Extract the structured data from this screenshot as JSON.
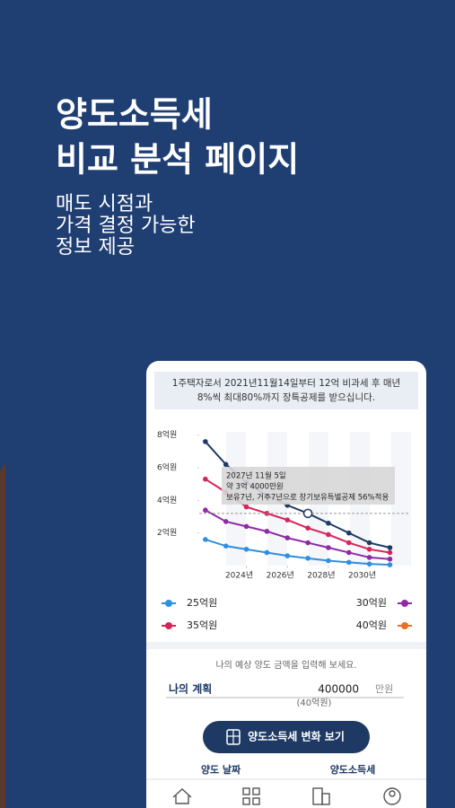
{
  "headline": [
    "양도소득세",
    "비교 분석 페이지"
  ],
  "subtext": [
    "매도 시점과",
    "가격 결정 가능한",
    "정보 제공"
  ],
  "notice": [
    "1주택자로서 2021년11월14일부터 12억 비과세 후 매년",
    "8%씩 최대80%까지 장특공제를 받으십니다."
  ],
  "chart_data": {
    "type": "line",
    "x": [
      2022,
      2023,
      2024,
      2025,
      2026,
      2027,
      2028,
      2029,
      2030,
      2031
    ],
    "series": [
      {
        "name": "25억원",
        "color": "#2f8fe0",
        "marker_color": "#2f8fe0",
        "values": [
          1.6,
          1.2,
          1.0,
          0.8,
          0.6,
          0.45,
          0.3,
          0.2,
          0.1,
          0.05
        ]
      },
      {
        "name": "30억원",
        "color": "#8e2aa5",
        "marker_color": "#8e2aa5",
        "values": [
          3.4,
          2.7,
          2.4,
          2.1,
          1.7,
          1.4,
          1.1,
          0.8,
          0.5,
          0.4
        ]
      },
      {
        "name": "35억원",
        "color": "#d6245a",
        "marker_color": "#d6245a",
        "values": [
          5.3,
          4.5,
          3.6,
          3.2,
          2.8,
          2.3,
          1.9,
          1.4,
          1.0,
          0.8
        ]
      },
      {
        "name": "40억원",
        "color": "#1e3a64",
        "marker_color": "#f06a2a",
        "values": [
          7.6,
          6.2,
          5.1,
          4.3,
          3.7,
          3.2,
          2.6,
          2.0,
          1.4,
          1.1
        ]
      }
    ],
    "xlim": [
      2021.7,
      2031.9
    ],
    "ylim": [
      0,
      8.2
    ],
    "xticks": [
      {
        "value": 2024,
        "label": "2024년"
      },
      {
        "value": 2026,
        "label": "2026년"
      },
      {
        "value": 2028,
        "label": "2028년"
      },
      {
        "value": 2030,
        "label": "2030년"
      }
    ],
    "yticks": [
      {
        "value": 2,
        "label": "2억원"
      },
      {
        "value": 4,
        "label": "4억원"
      },
      {
        "value": 6,
        "label": "6억원"
      },
      {
        "value": 8,
        "label": "8억원"
      }
    ],
    "tooltip": [
      "2027년 11월 5일",
      "약 3억 4000만원",
      "보유7년, 거주7년으로 장기보유특별공제 56%적용"
    ]
  },
  "input": {
    "prompt": "나의 예상 양도 금액을 입력해 보세요.",
    "label": "나의 계획",
    "amount": "400000",
    "unit": "만원",
    "converted": "(40억원)"
  },
  "button": "양도소득세 변화 보기",
  "columns": [
    "양도 날짜",
    "양도소득세"
  ]
}
